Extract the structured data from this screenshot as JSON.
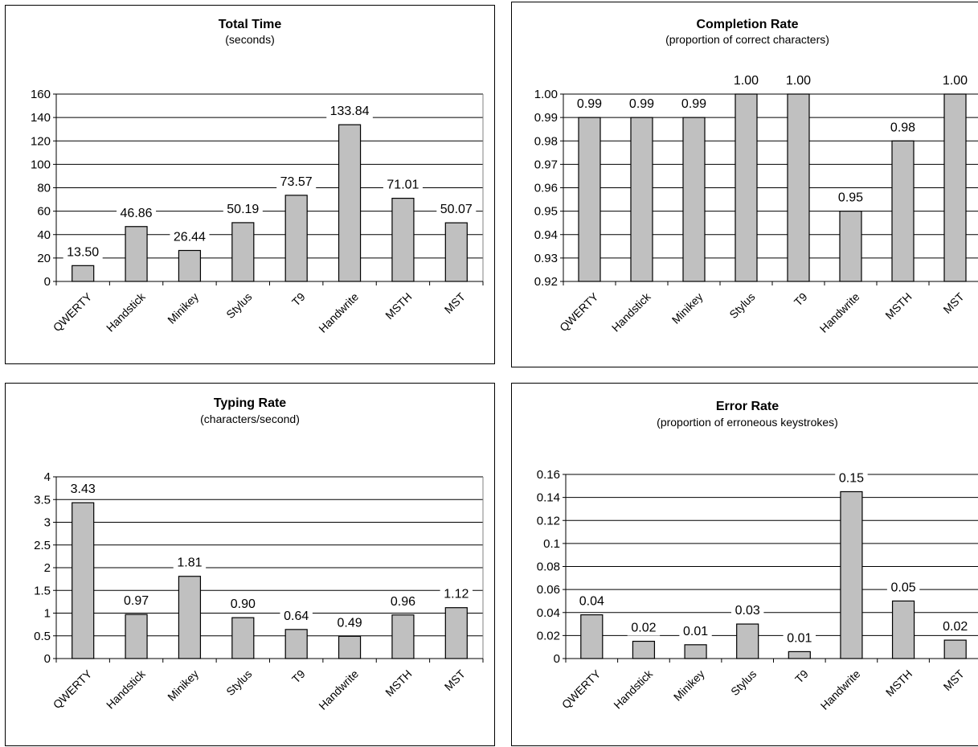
{
  "chart_data": [
    {
      "type": "bar",
      "title": "Total Time",
      "subtitle": "(seconds)",
      "categories": [
        "QWERTY",
        "Handstick",
        "Minikey",
        "Stylus",
        "T9",
        "Handwrite",
        "MSTH",
        "MST"
      ],
      "values": [
        13.5,
        46.86,
        26.44,
        50.19,
        73.57,
        133.84,
        71.01,
        50.07
      ],
      "labels": [
        "13.50",
        "46.86",
        "26.44",
        "50.19",
        "73.57",
        "133.84",
        "71.01",
        "50.07"
      ],
      "yticks": [
        "0",
        "20",
        "40",
        "60",
        "80",
        "100",
        "120",
        "140",
        "160"
      ],
      "ylim": [
        0,
        160
      ],
      "grid": true,
      "bar_color": "#c0c0c0"
    },
    {
      "type": "bar",
      "title": "Completion Rate",
      "subtitle": "(proportion of correct characters)",
      "categories": [
        "QWERTY",
        "Handstick",
        "Minikey",
        "Stylus",
        "T9",
        "Handwrite",
        "MSTH",
        "MST"
      ],
      "values": [
        0.99,
        0.99,
        0.99,
        1.0,
        1.0,
        0.95,
        0.98,
        1.0
      ],
      "labels": [
        "0.99",
        "0.99",
        "0.99",
        "1.00",
        "1.00",
        "0.95",
        "0.98",
        "1.00"
      ],
      "yticks": [
        "0.92",
        "0.93",
        "0.94",
        "0.95",
        "0.96",
        "0.97",
        "0.98",
        "0.99",
        "1.00"
      ],
      "ylim": [
        0.92,
        1.0
      ],
      "grid": true,
      "bar_color": "#c0c0c0"
    },
    {
      "type": "bar",
      "title": "Typing Rate",
      "subtitle": "(characters/second)",
      "categories": [
        "QWERTY",
        "Handstick",
        "Minikey",
        "Stylus",
        "T9",
        "Handwrite",
        "MSTH",
        "MST"
      ],
      "values": [
        3.43,
        0.97,
        1.81,
        0.9,
        0.64,
        0.49,
        0.96,
        1.12
      ],
      "labels": [
        "3.43",
        "0.97",
        "1.81",
        "0.90",
        "0.64",
        "0.49",
        "0.96",
        "1.12"
      ],
      "yticks": [
        "0",
        "0.5",
        "1",
        "1.5",
        "2",
        "2.5",
        "3",
        "3.5",
        "4"
      ],
      "ylim": [
        0,
        4
      ],
      "grid": true,
      "bar_color": "#c0c0c0"
    },
    {
      "type": "bar",
      "title": "Error Rate",
      "subtitle": "(proportion of erroneous keystrokes)",
      "categories": [
        "QWERTY",
        "Handstick",
        "Minikey",
        "Stylus",
        "T9",
        "Handwrite",
        "MSTH",
        "MST"
      ],
      "values": [
        0.038,
        0.015,
        0.012,
        0.03,
        0.006,
        0.145,
        0.05,
        0.016
      ],
      "labels": [
        "0.04",
        "0.02",
        "0.01",
        "0.03",
        "0.01",
        "0.15",
        "0.05",
        "0.02"
      ],
      "yticks": [
        "0",
        "0.02",
        "0.04",
        "0.06",
        "0.08",
        "0.1",
        "0.12",
        "0.14",
        "0.16"
      ],
      "ylim": [
        0,
        0.16
      ],
      "grid": true,
      "bar_color": "#c0c0c0"
    }
  ]
}
